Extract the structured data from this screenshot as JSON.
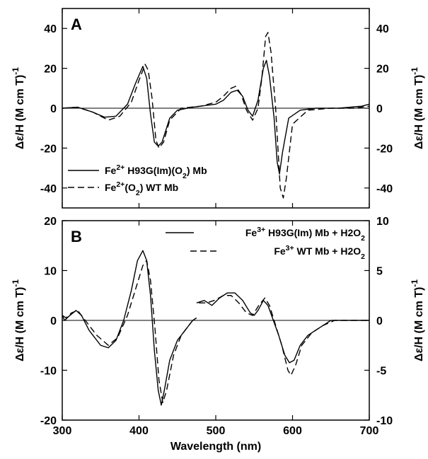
{
  "chart_data": [
    {
      "panel": "A",
      "type": "line",
      "xlabel": "",
      "ylabel_left": "Δε/H (M cm T)-1",
      "ylabel_right": "Δε/H (M cm T)-1",
      "xlim": [
        300,
        700
      ],
      "ylim_left": [
        -50,
        50
      ],
      "ylim_right": [
        -50,
        50
      ],
      "yticks_left": [
        -40,
        -20,
        0,
        20,
        40
      ],
      "yticks_right": [
        -40,
        -20,
        0,
        20,
        40
      ],
      "zero_line": true,
      "legend_position": "bottom-left",
      "series": [
        {
          "name": "Fe2+ H93G(Im)(O2) Mb",
          "style": "solid",
          "points": [
            [
              300,
              0
            ],
            [
              320,
              0.5
            ],
            [
              340,
              -2
            ],
            [
              355,
              -4.5
            ],
            [
              370,
              -4
            ],
            [
              385,
              2
            ],
            [
              395,
              12
            ],
            [
              405,
              21
            ],
            [
              410,
              15
            ],
            [
              415,
              -3
            ],
            [
              420,
              -17
            ],
            [
              425,
              -19
            ],
            [
              430,
              -17
            ],
            [
              440,
              -5
            ],
            [
              450,
              -1
            ],
            [
              470,
              0.5
            ],
            [
              500,
              2
            ],
            [
              510,
              4
            ],
            [
              520,
              8
            ],
            [
              528,
              9
            ],
            [
              535,
              6
            ],
            [
              542,
              -1
            ],
            [
              548,
              -4
            ],
            [
              555,
              4
            ],
            [
              562,
              20
            ],
            [
              566,
              24
            ],
            [
              570,
              16
            ],
            [
              576,
              -5
            ],
            [
              580,
              -27
            ],
            [
              583,
              -33
            ],
            [
              587,
              -22
            ],
            [
              595,
              -5
            ],
            [
              610,
              -1
            ],
            [
              630,
              0
            ],
            [
              660,
              0
            ],
            [
              690,
              1
            ],
            [
              700,
              2
            ]
          ]
        },
        {
          "name": "Fe2+(O2) WT Mb",
          "style": "dashed",
          "points": [
            [
              300,
              0
            ],
            [
              320,
              0.5
            ],
            [
              340,
              -2
            ],
            [
              360,
              -6
            ],
            [
              375,
              -4
            ],
            [
              390,
              3
            ],
            [
              400,
              14
            ],
            [
              408,
              22
            ],
            [
              412,
              19
            ],
            [
              417,
              5
            ],
            [
              422,
              -16
            ],
            [
              426,
              -20
            ],
            [
              432,
              -17
            ],
            [
              440,
              -6
            ],
            [
              455,
              0
            ],
            [
              480,
              1
            ],
            [
              500,
              3
            ],
            [
              510,
              6
            ],
            [
              520,
              10
            ],
            [
              526,
              11
            ],
            [
              533,
              7
            ],
            [
              540,
              -1
            ],
            [
              548,
              -6
            ],
            [
              555,
              0
            ],
            [
              560,
              15
            ],
            [
              565,
              36
            ],
            [
              568,
              38
            ],
            [
              572,
              28
            ],
            [
              578,
              0
            ],
            [
              584,
              -40
            ],
            [
              588,
              -45
            ],
            [
              592,
              -35
            ],
            [
              600,
              -8
            ],
            [
              620,
              -1
            ],
            [
              650,
              0
            ],
            [
              680,
              0
            ],
            [
              700,
              1
            ]
          ]
        }
      ]
    },
    {
      "panel": "B",
      "type": "line",
      "xlabel": "Wavelength (nm)",
      "ylabel_left": "Δε/H (M cm T)-1",
      "ylabel_right": "Δε/H (M cm T)-1",
      "xlim": [
        300,
        700
      ],
      "xticks": [
        300,
        400,
        500,
        600,
        700
      ],
      "ylim_left": [
        -20,
        20
      ],
      "ylim_right": [
        -10,
        10
      ],
      "yticks_left": [
        -20,
        -10,
        0,
        10,
        20
      ],
      "yticks_right": [
        -10,
        -5,
        0,
        5,
        10
      ],
      "zero_line": true,
      "legend_position": "top-right",
      "series": [
        {
          "name": "Fe3+ H93G(Im) Mb + H2O2",
          "style": "solid",
          "points": [
            [
              300,
              1
            ],
            [
              303,
              0
            ],
            [
              310,
              1
            ],
            [
              318,
              2
            ],
            [
              325,
              1
            ],
            [
              335,
              -2
            ],
            [
              350,
              -5
            ],
            [
              360,
              -5.5
            ],
            [
              370,
              -4
            ],
            [
              380,
              0
            ],
            [
              390,
              6
            ],
            [
              398,
              12
            ],
            [
              405,
              14
            ],
            [
              410,
              12
            ],
            [
              415,
              5
            ],
            [
              420,
              -6
            ],
            [
              425,
              -14
            ],
            [
              429,
              -17
            ],
            [
              433,
              -14
            ],
            [
              440,
              -8
            ],
            [
              450,
              -4
            ],
            [
              460,
              -2
            ],
            [
              470,
              0
            ],
            [
              475,
              0.5
            ],
            [
              null,
              null
            ],
            [
              475,
              3.5
            ],
            [
              485,
              4
            ],
            [
              495,
              3
            ],
            [
              505,
              4.5
            ],
            [
              515,
              5.5
            ],
            [
              525,
              5.5
            ],
            [
              535,
              4
            ],
            [
              545,
              1.5
            ],
            [
              550,
              1
            ],
            [
              555,
              2
            ],
            [
              562,
              4
            ],
            [
              568,
              3
            ],
            [
              575,
              0
            ],
            [
              582,
              -3
            ],
            [
              590,
              -7
            ],
            [
              596,
              -8.5
            ],
            [
              602,
              -8
            ],
            [
              610,
              -5
            ],
            [
              620,
              -3
            ],
            [
              630,
              -2
            ],
            [
              640,
              -1
            ],
            [
              650,
              0
            ],
            [
              670,
              0
            ],
            [
              700,
              0
            ]
          ]
        },
        {
          "name": "Fe3+ WT Mb + H2O2",
          "style": "dashed",
          "points": [
            [
              300,
              1
            ],
            [
              305,
              0.5
            ],
            [
              312,
              1.5
            ],
            [
              320,
              2
            ],
            [
              330,
              0
            ],
            [
              345,
              -3
            ],
            [
              360,
              -5
            ],
            [
              372,
              -3.5
            ],
            [
              385,
              1
            ],
            [
              395,
              6
            ],
            [
              405,
              11
            ],
            [
              410,
              12
            ],
            [
              415,
              8
            ],
            [
              421,
              -2
            ],
            [
              426,
              -12
            ],
            [
              431,
              -16.5
            ],
            [
              436,
              -14
            ],
            [
              445,
              -7
            ],
            [
              455,
              -3
            ],
            [
              465,
              -1
            ],
            [
              470,
              0
            ],
            [
              null,
              null
            ],
            [
              478,
              3.5
            ],
            [
              488,
              3.5
            ],
            [
              498,
              4
            ],
            [
              510,
              5
            ],
            [
              520,
              5
            ],
            [
              530,
              3.5
            ],
            [
              540,
              1.5
            ],
            [
              548,
              1
            ],
            [
              556,
              3
            ],
            [
              564,
              4.5
            ],
            [
              570,
              3
            ],
            [
              578,
              -1
            ],
            [
              586,
              -5
            ],
            [
              594,
              -10
            ],
            [
              598,
              -11
            ],
            [
              604,
              -9
            ],
            [
              612,
              -5
            ],
            [
              625,
              -2.5
            ],
            [
              640,
              -1
            ],
            [
              655,
              0
            ],
            [
              680,
              0
            ],
            [
              700,
              0
            ]
          ]
        }
      ]
    }
  ]
}
